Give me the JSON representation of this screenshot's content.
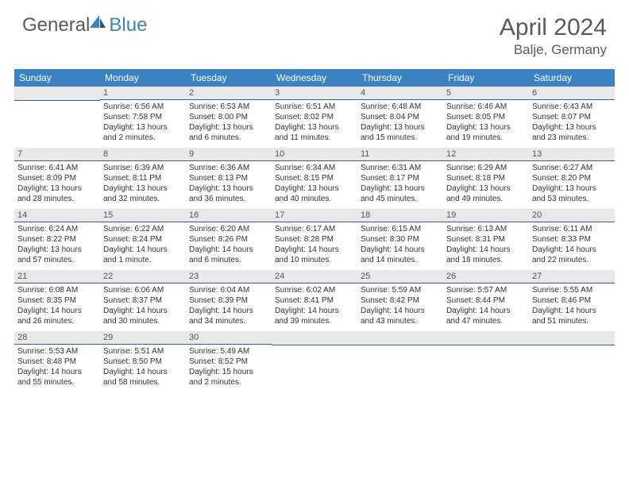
{
  "logo": {
    "text1": "General",
    "text2": "Blue"
  },
  "title": "April 2024",
  "location": "Balje, Germany",
  "colors": {
    "header_bg": "#3b82c4",
    "header_text": "#ffffff",
    "daynum_bg": "#e9e9e9",
    "daynum_border": "#445a7a",
    "text": "#333333",
    "title_text": "#5a5a5a"
  },
  "daynames": [
    "Sunday",
    "Monday",
    "Tuesday",
    "Wednesday",
    "Thursday",
    "Friday",
    "Saturday"
  ],
  "weeks": [
    [
      null,
      {
        "n": "1",
        "sr": "Sunrise: 6:56 AM",
        "ss": "Sunset: 7:58 PM",
        "d1": "Daylight: 13 hours",
        "d2": "and 2 minutes."
      },
      {
        "n": "2",
        "sr": "Sunrise: 6:53 AM",
        "ss": "Sunset: 8:00 PM",
        "d1": "Daylight: 13 hours",
        "d2": "and 6 minutes."
      },
      {
        "n": "3",
        "sr": "Sunrise: 6:51 AM",
        "ss": "Sunset: 8:02 PM",
        "d1": "Daylight: 13 hours",
        "d2": "and 11 minutes."
      },
      {
        "n": "4",
        "sr": "Sunrise: 6:48 AM",
        "ss": "Sunset: 8:04 PM",
        "d1": "Daylight: 13 hours",
        "d2": "and 15 minutes."
      },
      {
        "n": "5",
        "sr": "Sunrise: 6:46 AM",
        "ss": "Sunset: 8:05 PM",
        "d1": "Daylight: 13 hours",
        "d2": "and 19 minutes."
      },
      {
        "n": "6",
        "sr": "Sunrise: 6:43 AM",
        "ss": "Sunset: 8:07 PM",
        "d1": "Daylight: 13 hours",
        "d2": "and 23 minutes."
      }
    ],
    [
      {
        "n": "7",
        "sr": "Sunrise: 6:41 AM",
        "ss": "Sunset: 8:09 PM",
        "d1": "Daylight: 13 hours",
        "d2": "and 28 minutes."
      },
      {
        "n": "8",
        "sr": "Sunrise: 6:39 AM",
        "ss": "Sunset: 8:11 PM",
        "d1": "Daylight: 13 hours",
        "d2": "and 32 minutes."
      },
      {
        "n": "9",
        "sr": "Sunrise: 6:36 AM",
        "ss": "Sunset: 8:13 PM",
        "d1": "Daylight: 13 hours",
        "d2": "and 36 minutes."
      },
      {
        "n": "10",
        "sr": "Sunrise: 6:34 AM",
        "ss": "Sunset: 8:15 PM",
        "d1": "Daylight: 13 hours",
        "d2": "and 40 minutes."
      },
      {
        "n": "11",
        "sr": "Sunrise: 6:31 AM",
        "ss": "Sunset: 8:17 PM",
        "d1": "Daylight: 13 hours",
        "d2": "and 45 minutes."
      },
      {
        "n": "12",
        "sr": "Sunrise: 6:29 AM",
        "ss": "Sunset: 8:18 PM",
        "d1": "Daylight: 13 hours",
        "d2": "and 49 minutes."
      },
      {
        "n": "13",
        "sr": "Sunrise: 6:27 AM",
        "ss": "Sunset: 8:20 PM",
        "d1": "Daylight: 13 hours",
        "d2": "and 53 minutes."
      }
    ],
    [
      {
        "n": "14",
        "sr": "Sunrise: 6:24 AM",
        "ss": "Sunset: 8:22 PM",
        "d1": "Daylight: 13 hours",
        "d2": "and 57 minutes."
      },
      {
        "n": "15",
        "sr": "Sunrise: 6:22 AM",
        "ss": "Sunset: 8:24 PM",
        "d1": "Daylight: 14 hours",
        "d2": "and 1 minute."
      },
      {
        "n": "16",
        "sr": "Sunrise: 6:20 AM",
        "ss": "Sunset: 8:26 PM",
        "d1": "Daylight: 14 hours",
        "d2": "and 6 minutes."
      },
      {
        "n": "17",
        "sr": "Sunrise: 6:17 AM",
        "ss": "Sunset: 8:28 PM",
        "d1": "Daylight: 14 hours",
        "d2": "and 10 minutes."
      },
      {
        "n": "18",
        "sr": "Sunrise: 6:15 AM",
        "ss": "Sunset: 8:30 PM",
        "d1": "Daylight: 14 hours",
        "d2": "and 14 minutes."
      },
      {
        "n": "19",
        "sr": "Sunrise: 6:13 AM",
        "ss": "Sunset: 8:31 PM",
        "d1": "Daylight: 14 hours",
        "d2": "and 18 minutes."
      },
      {
        "n": "20",
        "sr": "Sunrise: 6:11 AM",
        "ss": "Sunset: 8:33 PM",
        "d1": "Daylight: 14 hours",
        "d2": "and 22 minutes."
      }
    ],
    [
      {
        "n": "21",
        "sr": "Sunrise: 6:08 AM",
        "ss": "Sunset: 8:35 PM",
        "d1": "Daylight: 14 hours",
        "d2": "and 26 minutes."
      },
      {
        "n": "22",
        "sr": "Sunrise: 6:06 AM",
        "ss": "Sunset: 8:37 PM",
        "d1": "Daylight: 14 hours",
        "d2": "and 30 minutes."
      },
      {
        "n": "23",
        "sr": "Sunrise: 6:04 AM",
        "ss": "Sunset: 8:39 PM",
        "d1": "Daylight: 14 hours",
        "d2": "and 34 minutes."
      },
      {
        "n": "24",
        "sr": "Sunrise: 6:02 AM",
        "ss": "Sunset: 8:41 PM",
        "d1": "Daylight: 14 hours",
        "d2": "and 39 minutes."
      },
      {
        "n": "25",
        "sr": "Sunrise: 5:59 AM",
        "ss": "Sunset: 8:42 PM",
        "d1": "Daylight: 14 hours",
        "d2": "and 43 minutes."
      },
      {
        "n": "26",
        "sr": "Sunrise: 5:57 AM",
        "ss": "Sunset: 8:44 PM",
        "d1": "Daylight: 14 hours",
        "d2": "and 47 minutes."
      },
      {
        "n": "27",
        "sr": "Sunrise: 5:55 AM",
        "ss": "Sunset: 8:46 PM",
        "d1": "Daylight: 14 hours",
        "d2": "and 51 minutes."
      }
    ],
    [
      {
        "n": "28",
        "sr": "Sunrise: 5:53 AM",
        "ss": "Sunset: 8:48 PM",
        "d1": "Daylight: 14 hours",
        "d2": "and 55 minutes."
      },
      {
        "n": "29",
        "sr": "Sunrise: 5:51 AM",
        "ss": "Sunset: 8:50 PM",
        "d1": "Daylight: 14 hours",
        "d2": "and 58 minutes."
      },
      {
        "n": "30",
        "sr": "Sunrise: 5:49 AM",
        "ss": "Sunset: 8:52 PM",
        "d1": "Daylight: 15 hours",
        "d2": "and 2 minutes."
      },
      null,
      null,
      null,
      null
    ]
  ]
}
